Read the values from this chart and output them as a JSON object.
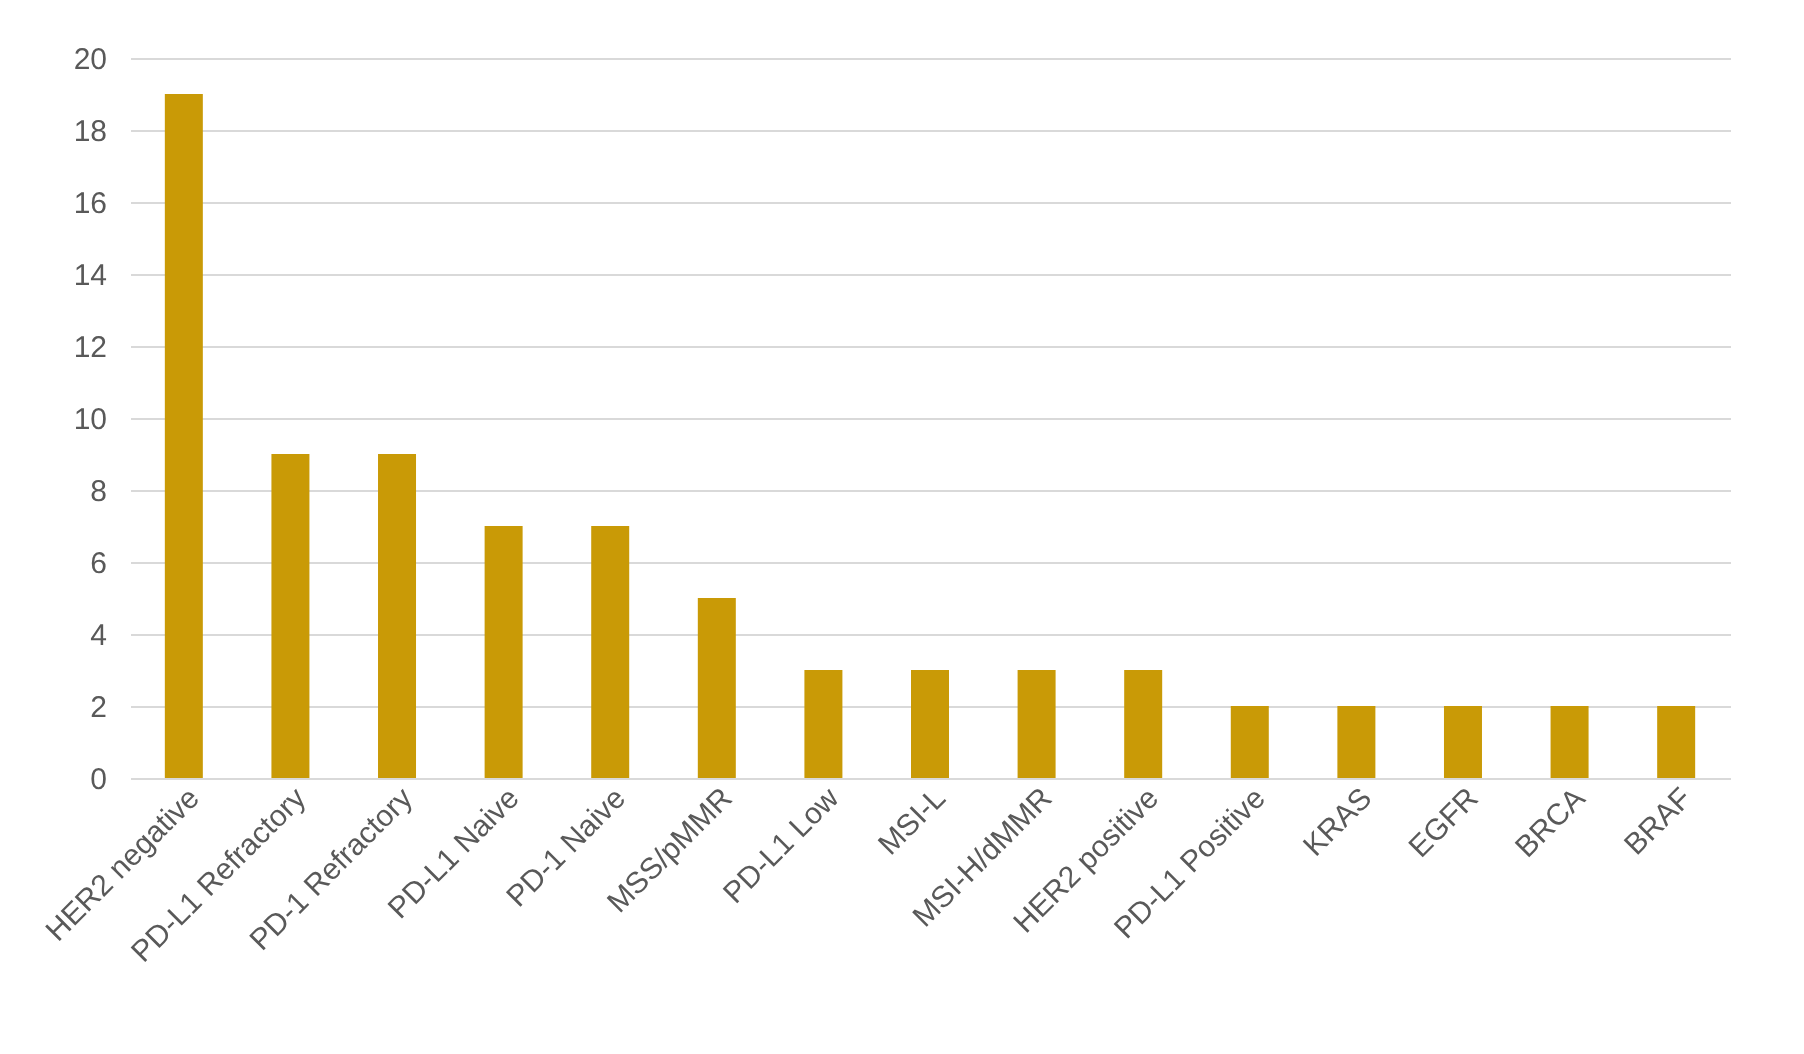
{
  "chart_data": {
    "type": "bar",
    "categories": [
      "HER2 negative",
      "PD-L1 Refractory",
      "PD-1 Refractory",
      "PD-L1 Naive",
      "PD-1 Naive",
      "MSS/pMMR",
      "PD-L1 Low",
      "MSI-L",
      "MSI-H/dMMR",
      "HER2 positive",
      "PD-L1 Positive",
      "KRAS",
      "EGFR",
      "BRCA",
      "BRAF"
    ],
    "values": [
      19,
      9,
      9,
      7,
      7,
      5,
      3,
      3,
      3,
      3,
      2,
      2,
      2,
      2,
      2
    ],
    "color": "#c99a06",
    "ylim": [
      0,
      20
    ],
    "yticks": [
      0,
      2,
      4,
      6,
      8,
      10,
      12,
      14,
      16,
      18,
      20
    ],
    "grid": "y"
  }
}
